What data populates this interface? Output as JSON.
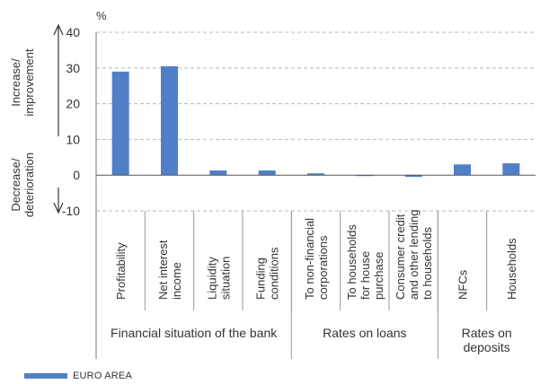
{
  "chart_data": {
    "type": "bar",
    "ylabel": "%",
    "ylim": [
      -10,
      40
    ],
    "yticks": [
      -10,
      0,
      10,
      20,
      30,
      40
    ],
    "grid": true,
    "categories": [
      "Profitability",
      "Net interest income",
      "Liquidity situation",
      "Funding conditions",
      "To non-financial corporations",
      "To households for house purchase",
      "Consumer credit and other lending to households",
      "NFCs",
      "Households"
    ],
    "category_label_lines": [
      [
        "Profitability"
      ],
      [
        "Net interest",
        "income"
      ],
      [
        "Liquidity",
        "situation"
      ],
      [
        "Funding",
        "conditions"
      ],
      [
        "To non-financial",
        "corporations"
      ],
      [
        "To households",
        "for house",
        "purchase"
      ],
      [
        "Consumer credit",
        "and other lending",
        "to households"
      ],
      [
        "NFCs"
      ],
      [
        "Households"
      ]
    ],
    "groups": [
      {
        "label_lines": [
          "Financial situation of the bank"
        ],
        "count": 4
      },
      {
        "label_lines": [
          "Rates on loans"
        ],
        "count": 3
      },
      {
        "label_lines": [
          "Rates on",
          "deposits"
        ],
        "count": 2
      }
    ],
    "series": [
      {
        "name": "EURO AREA",
        "color": "#4f7fc7",
        "values": [
          29,
          30.5,
          1.3,
          1.3,
          0.5,
          -0.2,
          -0.5,
          3,
          3.3
        ]
      }
    ],
    "annotations": {
      "up_label": [
        "Increase/",
        "improvement"
      ],
      "down_label": [
        "Decrease/",
        "deterioration"
      ]
    }
  },
  "legend": {
    "label": "EURO AREA",
    "color": "#4f7fc7"
  }
}
